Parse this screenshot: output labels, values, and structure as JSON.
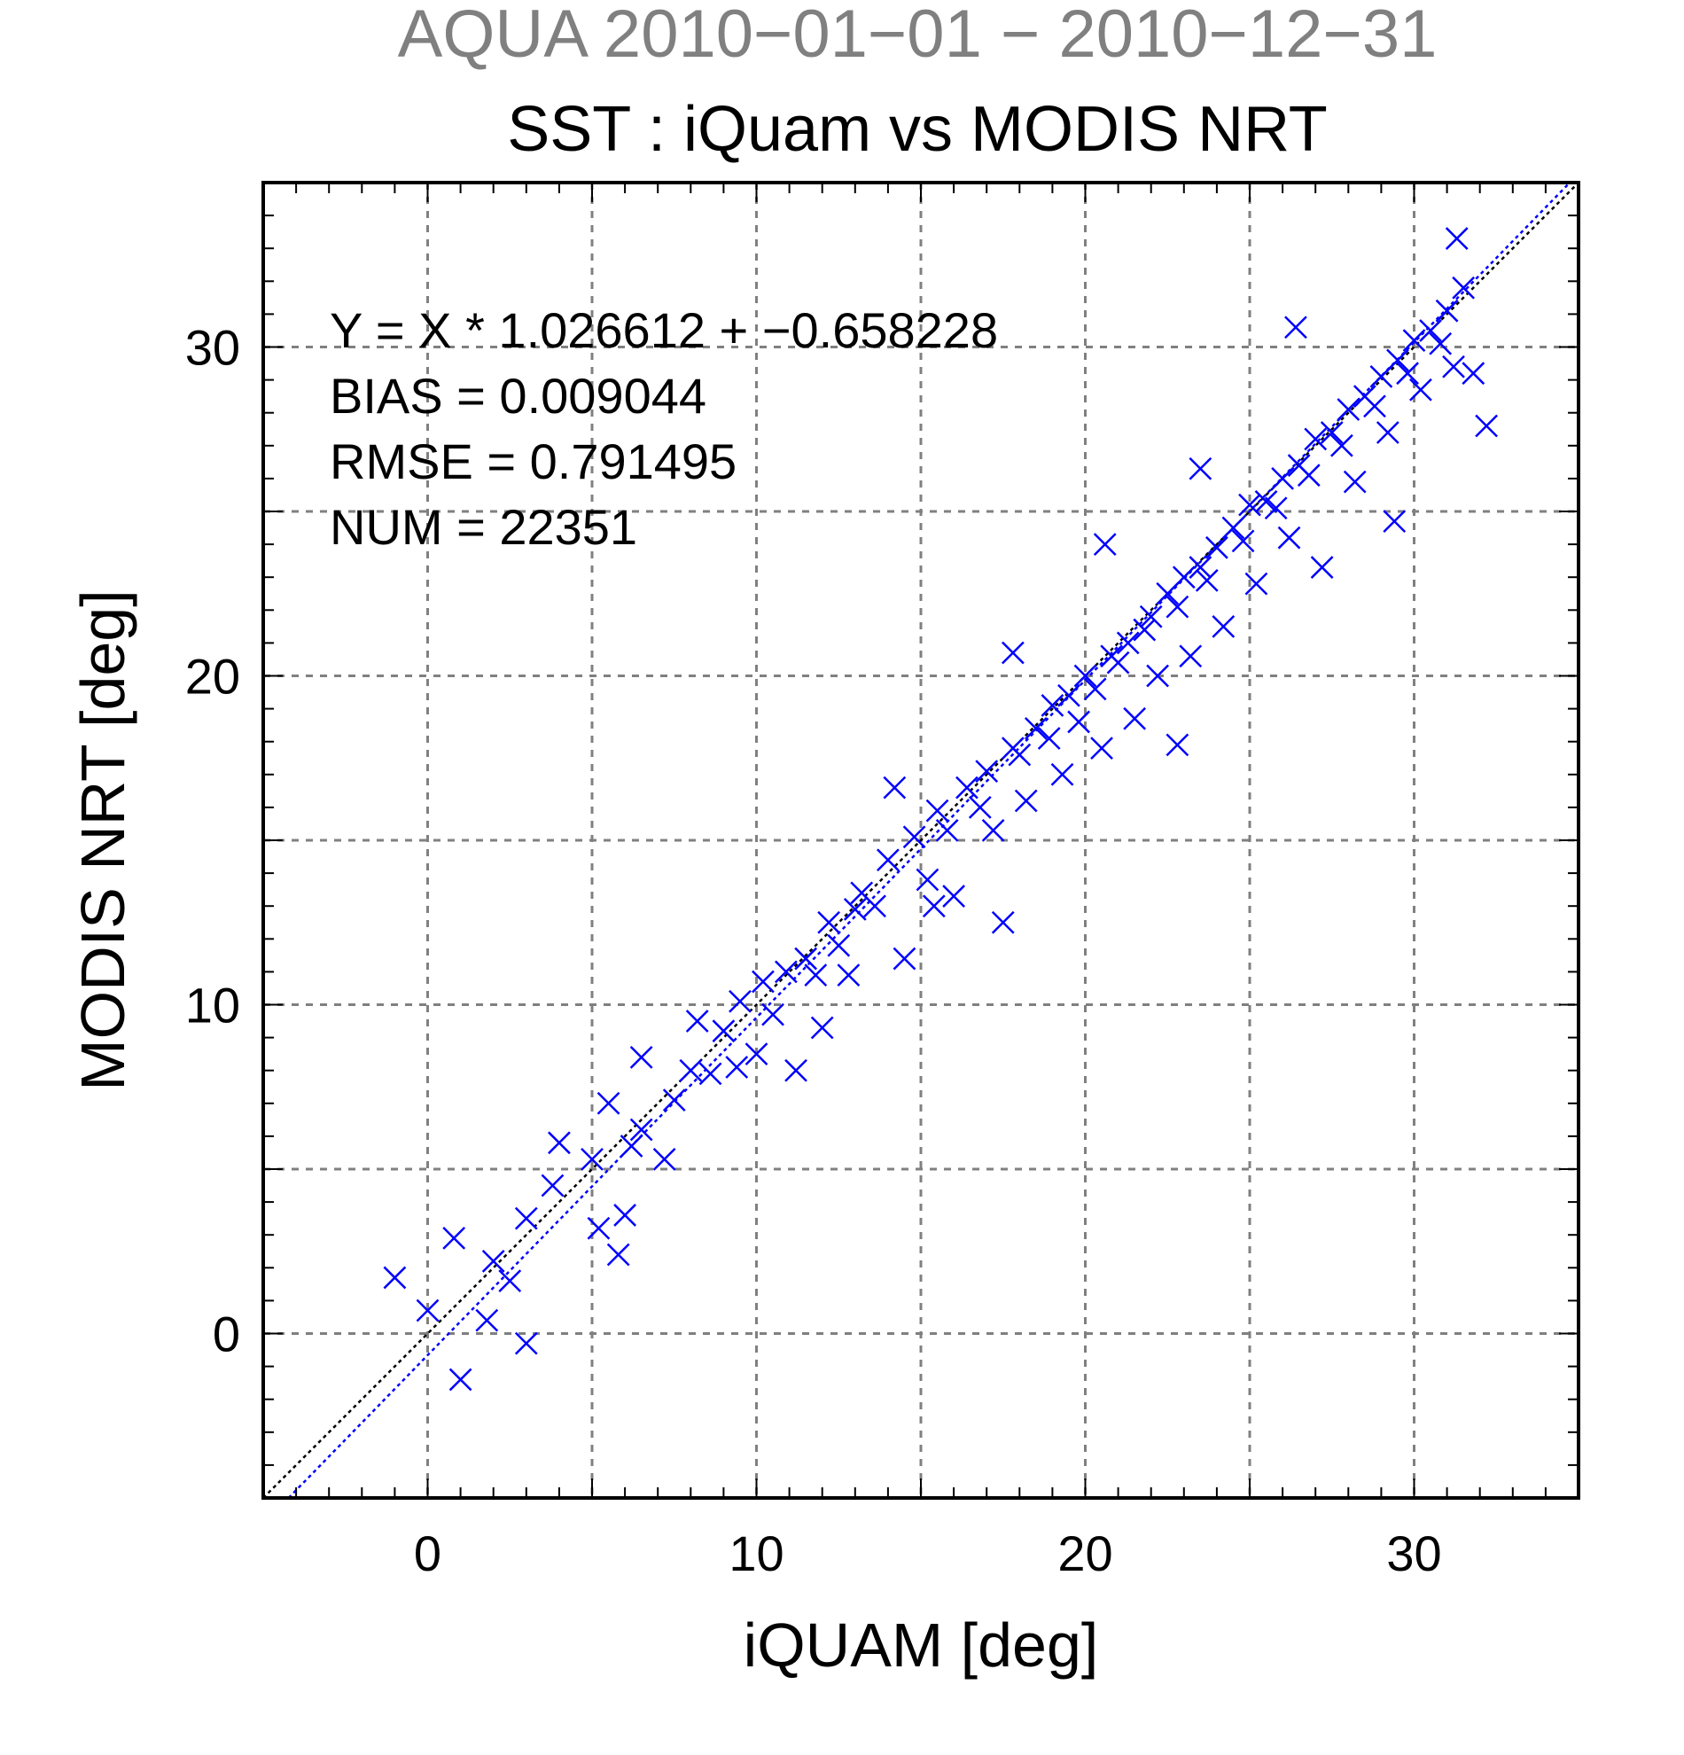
{
  "header": {
    "supertitle": "AQUA  2010−01−01 − 2010−12−31",
    "title": "SST : iQuam vs MODIS NRT"
  },
  "stats": {
    "regression": "Y = X * 1.026612 + −0.658228",
    "bias": "BIAS = 0.009044",
    "rmse": "RMSE = 0.791495",
    "num": "NUM = 22351"
  },
  "colors": {
    "points": "#0000ff",
    "fit_line": "#0000ff",
    "identity_line": "#000000",
    "grid": "#808080",
    "supertitle": "#808080"
  },
  "chart_data": {
    "type": "scatter",
    "xlabel": "iQUAM [deg]",
    "ylabel": "MODIS NRT [deg]",
    "xlim": [
      -5,
      35
    ],
    "ylim": [
      -5,
      35
    ],
    "xticks": [
      0,
      10,
      20,
      30
    ],
    "yticks": [
      0,
      10,
      20,
      30
    ],
    "grid": true,
    "marker": "x",
    "fit": {
      "slope": 1.026612,
      "intercept": -0.658228
    },
    "identity_line": true,
    "series": [
      {
        "points": [
          [
            -1.0,
            1.7
          ],
          [
            0.0,
            0.7
          ],
          [
            0.8,
            2.9
          ],
          [
            1.0,
            -1.4
          ],
          [
            1.8,
            0.4
          ],
          [
            2.0,
            2.2
          ],
          [
            2.5,
            1.6
          ],
          [
            3.0,
            3.5
          ],
          [
            3.0,
            -0.3
          ],
          [
            4.0,
            5.8
          ],
          [
            3.8,
            4.5
          ],
          [
            5.0,
            5.3
          ],
          [
            5.2,
            3.2
          ],
          [
            5.5,
            7.0
          ],
          [
            5.8,
            2.4
          ],
          [
            6.0,
            3.6
          ],
          [
            6.2,
            5.7
          ],
          [
            6.5,
            6.2
          ],
          [
            6.5,
            8.4
          ],
          [
            7.2,
            5.3
          ],
          [
            7.5,
            7.1
          ],
          [
            8.0,
            8.0
          ],
          [
            8.2,
            9.5
          ],
          [
            8.6,
            7.9
          ],
          [
            9.0,
            9.2
          ],
          [
            9.4,
            8.1
          ],
          [
            9.5,
            10.1
          ],
          [
            10.0,
            8.5
          ],
          [
            10.2,
            10.7
          ],
          [
            10.5,
            9.7
          ],
          [
            10.9,
            11.0
          ],
          [
            11.2,
            8.0
          ],
          [
            11.5,
            11.4
          ],
          [
            11.8,
            10.9
          ],
          [
            12.0,
            9.3
          ],
          [
            12.2,
            12.5
          ],
          [
            12.5,
            11.8
          ],
          [
            12.8,
            10.9
          ],
          [
            13.0,
            12.9
          ],
          [
            13.2,
            13.4
          ],
          [
            13.6,
            13.0
          ],
          [
            14.0,
            14.4
          ],
          [
            14.2,
            16.6
          ],
          [
            14.5,
            11.4
          ],
          [
            14.8,
            15.1
          ],
          [
            15.2,
            13.8
          ],
          [
            15.5,
            15.9
          ],
          [
            15.8,
            15.3
          ],
          [
            16.0,
            13.3
          ],
          [
            16.4,
            16.6
          ],
          [
            16.8,
            16.0
          ],
          [
            17.0,
            17.1
          ],
          [
            17.2,
            15.3
          ],
          [
            17.5,
            12.5
          ],
          [
            17.8,
            17.8
          ],
          [
            18.0,
            17.6
          ],
          [
            18.2,
            16.2
          ],
          [
            18.5,
            18.4
          ],
          [
            18.9,
            18.1
          ],
          [
            19.0,
            19.1
          ],
          [
            19.3,
            17.0
          ],
          [
            19.5,
            19.4
          ],
          [
            19.8,
            18.6
          ],
          [
            20.0,
            20.0
          ],
          [
            20.3,
            19.6
          ],
          [
            20.5,
            17.8
          ],
          [
            20.8,
            20.6
          ],
          [
            21.0,
            20.4
          ],
          [
            21.3,
            21.0
          ],
          [
            21.5,
            18.7
          ],
          [
            21.8,
            21.4
          ],
          [
            22.0,
            21.8
          ],
          [
            22.2,
            20.0
          ],
          [
            22.5,
            22.5
          ],
          [
            22.8,
            22.1
          ],
          [
            23.0,
            23.0
          ],
          [
            23.2,
            20.6
          ],
          [
            23.5,
            23.3
          ],
          [
            23.7,
            22.9
          ],
          [
            24.0,
            23.9
          ],
          [
            24.2,
            21.5
          ],
          [
            24.5,
            24.5
          ],
          [
            24.8,
            24.1
          ],
          [
            25.0,
            25.2
          ],
          [
            25.2,
            22.8
          ],
          [
            25.5,
            25.3
          ],
          [
            25.8,
            25.1
          ],
          [
            26.0,
            26.0
          ],
          [
            26.2,
            24.2
          ],
          [
            26.5,
            26.4
          ],
          [
            26.8,
            26.1
          ],
          [
            27.0,
            27.2
          ],
          [
            27.2,
            23.3
          ],
          [
            27.5,
            27.4
          ],
          [
            27.8,
            27.0
          ],
          [
            28.0,
            28.1
          ],
          [
            28.2,
            25.9
          ],
          [
            28.5,
            28.5
          ],
          [
            28.8,
            28.2
          ],
          [
            29.0,
            29.1
          ],
          [
            29.2,
            27.4
          ],
          [
            29.5,
            29.6
          ],
          [
            29.8,
            29.2
          ],
          [
            30.0,
            30.2
          ],
          [
            30.2,
            28.7
          ],
          [
            30.5,
            30.5
          ],
          [
            30.8,
            30.1
          ],
          [
            31.0,
            31.1
          ],
          [
            31.2,
            29.4
          ],
          [
            31.5,
            31.8
          ],
          [
            31.8,
            29.2
          ],
          [
            32.2,
            27.6
          ],
          [
            31.3,
            33.3
          ],
          [
            29.4,
            24.7
          ],
          [
            26.4,
            30.6
          ],
          [
            23.5,
            26.3
          ],
          [
            20.6,
            24.0
          ],
          [
            22.8,
            17.9
          ],
          [
            17.8,
            20.7
          ],
          [
            15.4,
            13.0
          ]
        ]
      }
    ]
  }
}
